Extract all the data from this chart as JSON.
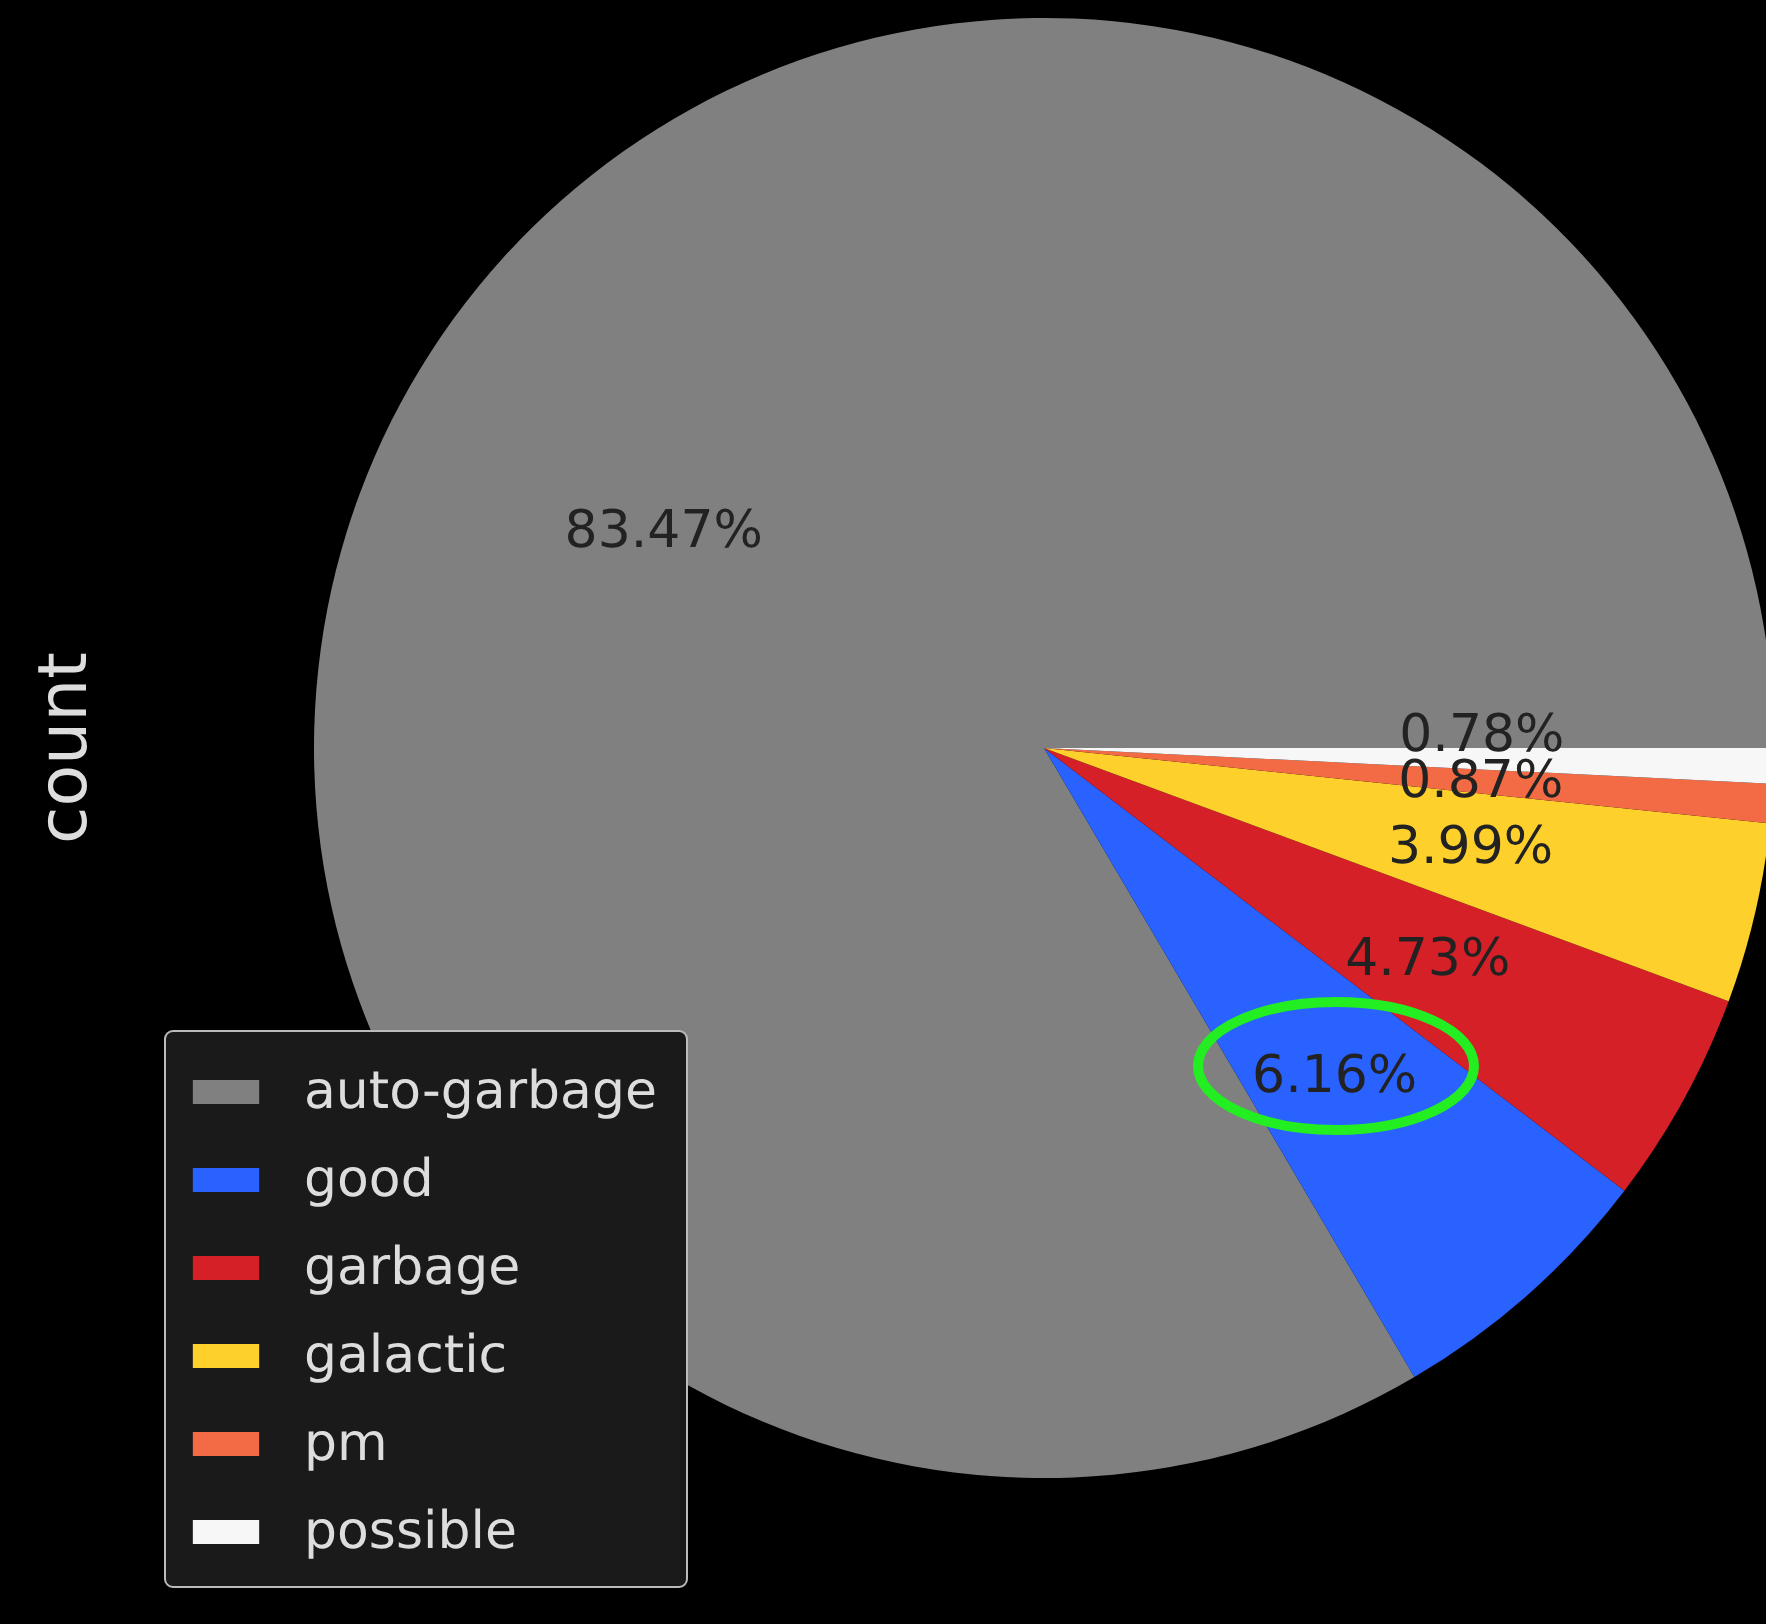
{
  "chart_data": {
    "type": "pie",
    "ylabel": "count",
    "categories": [
      "auto-garbage",
      "good",
      "garbage",
      "galactic",
      "pm",
      "possible"
    ],
    "values": [
      83.47,
      6.16,
      4.73,
      3.99,
      0.87,
      0.78
    ],
    "value_labels": [
      "83.47%",
      "6.16%",
      "4.73%",
      "3.99%",
      "0.87%",
      "0.78%"
    ],
    "colors": [
      "#808080",
      "#2962ff",
      "#d62028",
      "#fdd02b",
      "#f26b45",
      "#f7f7f7"
    ],
    "legend": "bottom left"
  }
}
